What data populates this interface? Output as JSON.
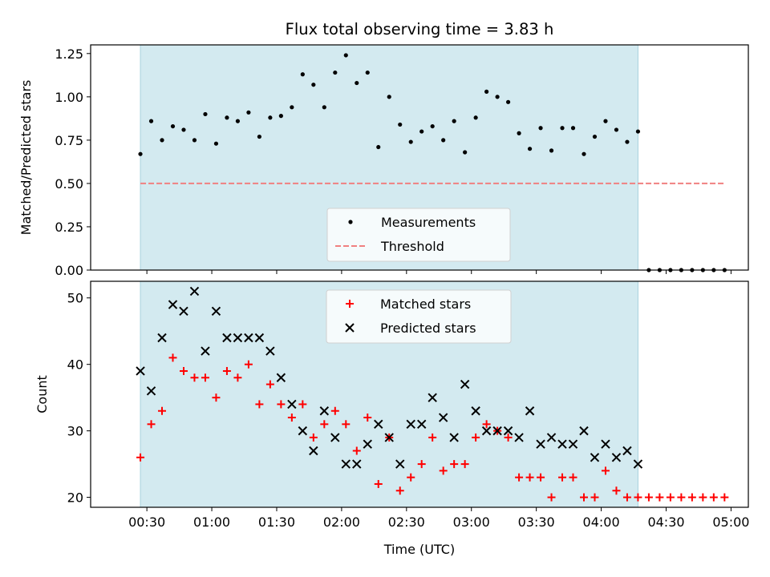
{
  "chart_data": {
    "title": "Flux total observing time = 3.83 h",
    "xlabel": "Time (UTC)",
    "x_tick_labels": [
      "00:30",
      "01:00",
      "01:30",
      "02:00",
      "02:30",
      "03:00",
      "03:30",
      "04:00",
      "04:30",
      "05:00"
    ],
    "x_tick_minutes": [
      30,
      60,
      90,
      120,
      150,
      180,
      210,
      240,
      270,
      300
    ],
    "xlim_minutes": [
      4,
      308
    ],
    "colors": {
      "band": "#d3eaf0",
      "measurements": "#000000",
      "threshold": "#f08080",
      "matched": "#ff0000",
      "predicted": "#000000"
    },
    "observing_window_minutes": [
      27,
      257
    ],
    "panels": [
      {
        "type": "scatter",
        "ylabel": "Matched/Predicted stars",
        "ylim": [
          0,
          1.3
        ],
        "y_ticks": [
          0.0,
          0.25,
          0.5,
          0.75,
          1.0,
          1.25
        ],
        "y_tick_labels": [
          "0.00",
          "0.25",
          "0.50",
          "0.75",
          "1.00",
          "1.25"
        ],
        "legend_position": "lower-center",
        "threshold": {
          "name": "Threshold",
          "value": 0.5,
          "x_range": [
            27,
            297
          ]
        },
        "series": [
          {
            "name": "Measurements",
            "marker": "dot",
            "x": [
              27,
              32,
              37,
              42,
              47,
              52,
              57,
              62,
              67,
              72,
              77,
              82,
              87,
              92,
              97,
              102,
              107,
              112,
              117,
              122,
              127,
              132,
              137,
              142,
              147,
              152,
              157,
              162,
              167,
              172,
              177,
              182,
              187,
              192,
              197,
              202,
              207,
              212,
              217,
              222,
              227,
              232,
              237,
              242,
              247,
              252,
              257,
              262,
              267,
              272,
              277,
              282,
              287,
              292,
              297
            ],
            "y": [
              0.67,
              0.86,
              0.75,
              0.83,
              0.81,
              0.75,
              0.9,
              0.73,
              0.88,
              0.86,
              0.91,
              0.77,
              0.88,
              0.89,
              0.94,
              1.13,
              1.07,
              0.94,
              1.14,
              1.24,
              1.08,
              1.14,
              0.71,
              1.0,
              0.84,
              0.74,
              0.8,
              0.83,
              0.75,
              0.86,
              0.68,
              0.88,
              1.03,
              1.0,
              0.97,
              0.79,
              0.7,
              0.82,
              0.69,
              0.82,
              0.82,
              0.67,
              0.77,
              0.86,
              0.81,
              0.74,
              0.8,
              0.0,
              0.0,
              0.0,
              0.0,
              0.0,
              0.0,
              0.0,
              0.0
            ]
          }
        ]
      },
      {
        "type": "scatter",
        "ylabel": "Count",
        "ylim": [
          18.5,
          52.5
        ],
        "y_ticks": [
          20,
          30,
          40,
          50
        ],
        "y_tick_labels": [
          "20",
          "30",
          "40",
          "50"
        ],
        "legend_position": "upper-center",
        "series": [
          {
            "name": "Matched stars",
            "marker": "plus",
            "x": [
              27,
              32,
              37,
              42,
              47,
              52,
              57,
              62,
              67,
              72,
              77,
              82,
              87,
              92,
              97,
              102,
              107,
              112,
              117,
              122,
              127,
              132,
              137,
              142,
              147,
              152,
              157,
              162,
              167,
              172,
              177,
              182,
              187,
              192,
              197,
              202,
              207,
              212,
              217,
              222,
              227,
              232,
              237,
              242,
              247,
              252,
              257,
              262,
              267,
              272,
              277,
              282,
              287,
              292,
              297
            ],
            "y": [
              26,
              31,
              33,
              41,
              39,
              38,
              38,
              35,
              39,
              38,
              40,
              34,
              37,
              34,
              32,
              34,
              29,
              31,
              33,
              31,
              27,
              32,
              22,
              29,
              21,
              23,
              25,
              29,
              24,
              25,
              25,
              29,
              31,
              30,
              29,
              23,
              23,
              23,
              20,
              23,
              23,
              20,
              20,
              24,
              21,
              20,
              20,
              20,
              20,
              20,
              20,
              20,
              20,
              20,
              20
            ]
          },
          {
            "name": "Predicted stars",
            "marker": "x",
            "x": [
              27,
              32,
              37,
              42,
              47,
              52,
              57,
              62,
              67,
              72,
              77,
              82,
              87,
              92,
              97,
              102,
              107,
              112,
              117,
              122,
              127,
              132,
              137,
              142,
              147,
              152,
              157,
              162,
              167,
              172,
              177,
              182,
              187,
              192,
              197,
              202,
              207,
              212,
              217,
              222,
              227,
              232,
              237,
              242,
              247,
              252,
              257
            ],
            "y": [
              39,
              36,
              44,
              49,
              48,
              51,
              42,
              48,
              44,
              44,
              44,
              44,
              42,
              38,
              34,
              30,
              27,
              33,
              29,
              25,
              25,
              28,
              31,
              29,
              25,
              31,
              31,
              35,
              32,
              29,
              37,
              33,
              30,
              30,
              30,
              29,
              33,
              28,
              29,
              28,
              28,
              30,
              26,
              28,
              26,
              27,
              25
            ]
          }
        ]
      }
    ]
  }
}
